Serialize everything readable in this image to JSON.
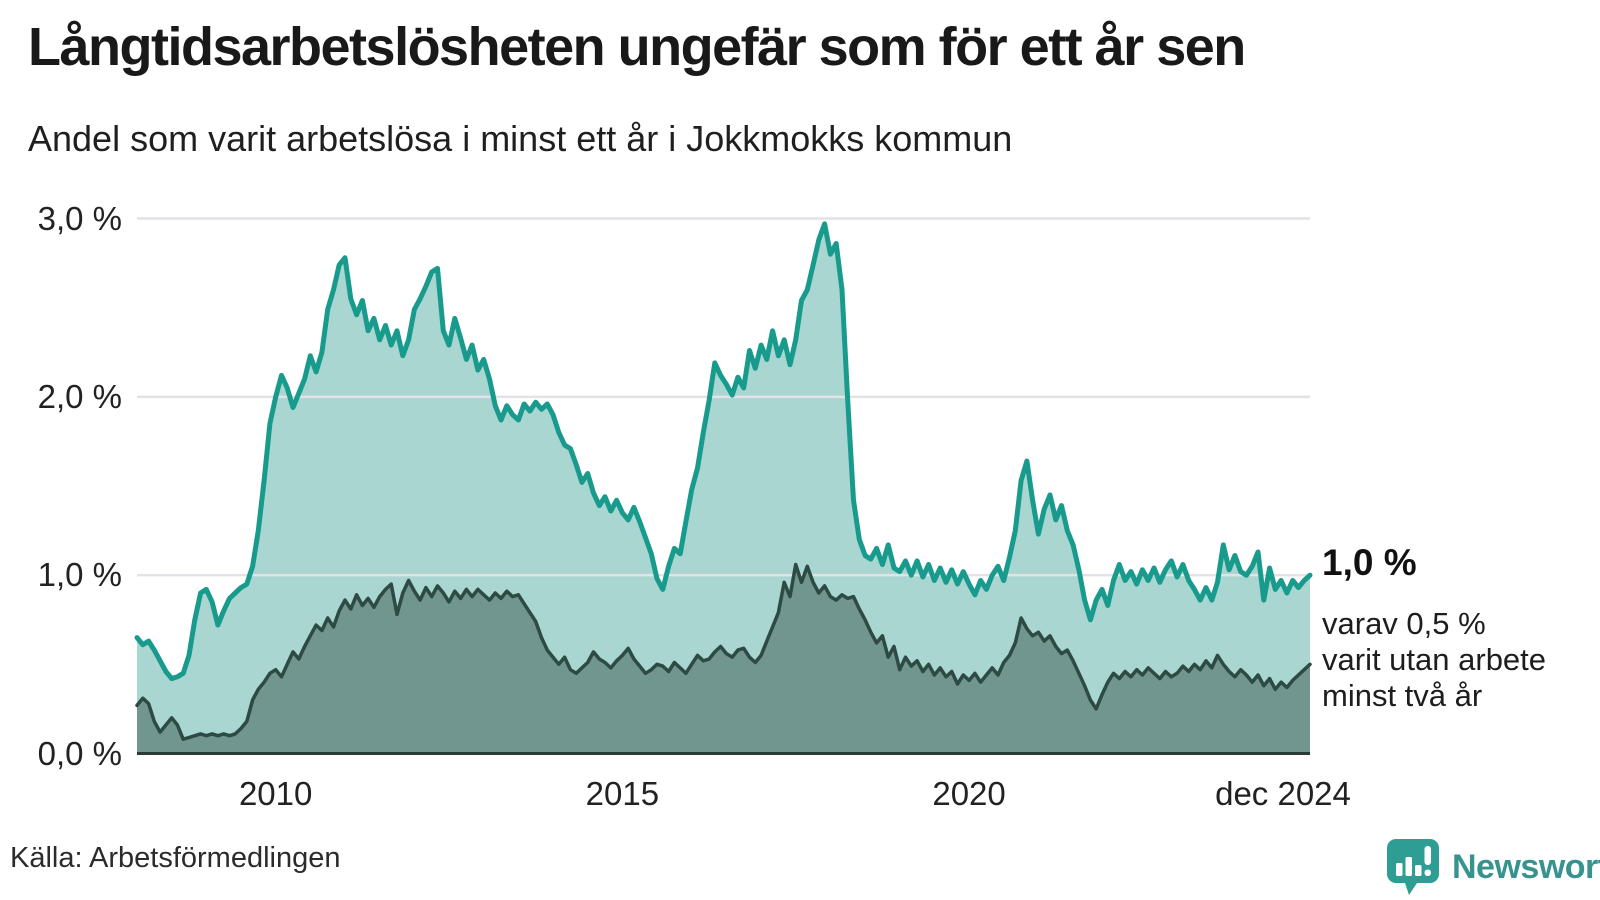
{
  "header": {
    "title": "Långtidsarbetslösheten ungefär som för ett år sen",
    "subtitle": "Andel som varit arbetslösa i minst ett år i Jokkmokks kommun"
  },
  "chart_data": {
    "type": "area",
    "title": "Långtidsarbetslösheten ungefär som för ett år sen",
    "subtitle": "Andel som varit arbetslösa i minst ett år i Jokkmokks kommun",
    "unit": "%",
    "frequency": "monthly",
    "start": "2008-01",
    "end": "2024-12",
    "x_domain_years": [
      2008.0,
      2024.9167
    ],
    "ylim": [
      0,
      3.1
    ],
    "grid": "horizontal",
    "y_ticks": [
      {
        "label": "3,0 %",
        "value": 3.0
      },
      {
        "label": "2,0 %",
        "value": 2.0
      },
      {
        "label": "1,0 %",
        "value": 1.0
      },
      {
        "label": "0,0 %",
        "value": 0.0
      }
    ],
    "x_ticks": [
      {
        "label": "2010",
        "year": 2010.0
      },
      {
        "label": "2015",
        "year": 2015.0
      },
      {
        "label": "2020",
        "year": 2020.0
      },
      {
        "label": "dec 2024",
        "year": 2024.9167
      }
    ],
    "colors": {
      "line_total": "#189b8d",
      "fill_total": "#a9d6d0",
      "line_two_years": "#2d4a44",
      "fill_two_years": "#70968f",
      "gridline": "#e2e2e7",
      "baseline": "#2b3c38"
    },
    "series": [
      {
        "name": "Arbetslösa minst ett år",
        "values": [
          0.65,
          0.61,
          0.63,
          0.58,
          0.52,
          0.46,
          0.42,
          0.43,
          0.45,
          0.55,
          0.75,
          0.9,
          0.92,
          0.85,
          0.72,
          0.8,
          0.87,
          0.9,
          0.93,
          0.95,
          1.05,
          1.25,
          1.53,
          1.85,
          2.0,
          2.12,
          2.05,
          1.94,
          2.02,
          2.1,
          2.23,
          2.14,
          2.25,
          2.49,
          2.6,
          2.74,
          2.78,
          2.55,
          2.46,
          2.54,
          2.37,
          2.44,
          2.32,
          2.4,
          2.29,
          2.37,
          2.23,
          2.32,
          2.49,
          2.55,
          2.62,
          2.7,
          2.72,
          2.37,
          2.29,
          2.44,
          2.33,
          2.21,
          2.29,
          2.15,
          2.21,
          2.1,
          1.95,
          1.87,
          1.95,
          1.9,
          1.87,
          1.96,
          1.92,
          1.97,
          1.93,
          1.96,
          1.9,
          1.8,
          1.73,
          1.71,
          1.62,
          1.52,
          1.57,
          1.46,
          1.39,
          1.44,
          1.36,
          1.42,
          1.35,
          1.31,
          1.38,
          1.3,
          1.21,
          1.12,
          0.98,
          0.92,
          1.05,
          1.15,
          1.12,
          1.3,
          1.48,
          1.6,
          1.8,
          1.98,
          2.19,
          2.12,
          2.07,
          2.01,
          2.11,
          2.05,
          2.26,
          2.16,
          2.29,
          2.21,
          2.37,
          2.23,
          2.32,
          2.18,
          2.32,
          2.54,
          2.6,
          2.74,
          2.88,
          2.97,
          2.8,
          2.86,
          2.6,
          1.98,
          1.42,
          1.2,
          1.11,
          1.09,
          1.15,
          1.06,
          1.17,
          1.04,
          1.02,
          1.08,
          1.0,
          1.08,
          0.99,
          1.06,
          0.97,
          1.04,
          0.96,
          1.03,
          0.95,
          1.02,
          0.95,
          0.89,
          0.97,
          0.92,
          1.0,
          1.05,
          0.97,
          1.1,
          1.25,
          1.53,
          1.64,
          1.42,
          1.23,
          1.37,
          1.45,
          1.31,
          1.39,
          1.25,
          1.17,
          1.03,
          0.86,
          0.75,
          0.86,
          0.92,
          0.83,
          0.97,
          1.06,
          0.97,
          1.02,
          0.95,
          1.03,
          0.97,
          1.04,
          0.96,
          1.03,
          1.08,
          0.99,
          1.06,
          0.97,
          0.92,
          0.86,
          0.93,
          0.86,
          0.96,
          1.17,
          1.03,
          1.11,
          1.02,
          1.0,
          1.05,
          1.13,
          0.86,
          1.04,
          0.92,
          0.97,
          0.9,
          0.97,
          0.93,
          0.97,
          1.0
        ]
      },
      {
        "name": "Varav utan arbete minst två år",
        "values": [
          0.27,
          0.31,
          0.28,
          0.18,
          0.12,
          0.16,
          0.2,
          0.16,
          0.08,
          0.09,
          0.1,
          0.11,
          0.1,
          0.11,
          0.1,
          0.11,
          0.1,
          0.11,
          0.14,
          0.18,
          0.3,
          0.36,
          0.4,
          0.45,
          0.47,
          0.43,
          0.5,
          0.57,
          0.53,
          0.6,
          0.66,
          0.72,
          0.69,
          0.76,
          0.71,
          0.8,
          0.86,
          0.81,
          0.89,
          0.83,
          0.87,
          0.82,
          0.88,
          0.92,
          0.95,
          0.78,
          0.9,
          0.97,
          0.91,
          0.86,
          0.93,
          0.88,
          0.94,
          0.9,
          0.85,
          0.91,
          0.87,
          0.92,
          0.88,
          0.92,
          0.89,
          0.86,
          0.9,
          0.87,
          0.91,
          0.88,
          0.89,
          0.84,
          0.79,
          0.74,
          0.65,
          0.58,
          0.54,
          0.5,
          0.54,
          0.47,
          0.45,
          0.48,
          0.51,
          0.57,
          0.53,
          0.51,
          0.48,
          0.52,
          0.55,
          0.59,
          0.53,
          0.49,
          0.45,
          0.47,
          0.5,
          0.49,
          0.46,
          0.51,
          0.48,
          0.45,
          0.5,
          0.55,
          0.52,
          0.53,
          0.57,
          0.6,
          0.56,
          0.54,
          0.58,
          0.59,
          0.54,
          0.51,
          0.55,
          0.63,
          0.71,
          0.79,
          0.96,
          0.88,
          1.06,
          0.96,
          1.05,
          0.96,
          0.9,
          0.94,
          0.88,
          0.86,
          0.89,
          0.87,
          0.88,
          0.81,
          0.75,
          0.68,
          0.62,
          0.66,
          0.54,
          0.6,
          0.47,
          0.54,
          0.49,
          0.52,
          0.46,
          0.5,
          0.44,
          0.48,
          0.43,
          0.46,
          0.39,
          0.44,
          0.41,
          0.45,
          0.4,
          0.44,
          0.48,
          0.44,
          0.51,
          0.55,
          0.62,
          0.76,
          0.7,
          0.66,
          0.68,
          0.63,
          0.66,
          0.6,
          0.56,
          0.58,
          0.52,
          0.45,
          0.38,
          0.3,
          0.25,
          0.33,
          0.4,
          0.45,
          0.42,
          0.46,
          0.43,
          0.47,
          0.44,
          0.48,
          0.45,
          0.42,
          0.46,
          0.43,
          0.45,
          0.49,
          0.46,
          0.5,
          0.47,
          0.52,
          0.48,
          0.55,
          0.5,
          0.46,
          0.43,
          0.47,
          0.44,
          0.4,
          0.44,
          0.38,
          0.42,
          0.36,
          0.4,
          0.37,
          0.41,
          0.44,
          0.47,
          0.5
        ]
      }
    ],
    "annotations": {
      "end_label": "1,0 %",
      "sub_label_lines": [
        "varav 0,5 %",
        "varit utan arbete",
        "minst två år"
      ]
    }
  },
  "footer": {
    "source": "Källa: Arbetsförmedlingen",
    "logo_text": "Newsworthy"
  }
}
